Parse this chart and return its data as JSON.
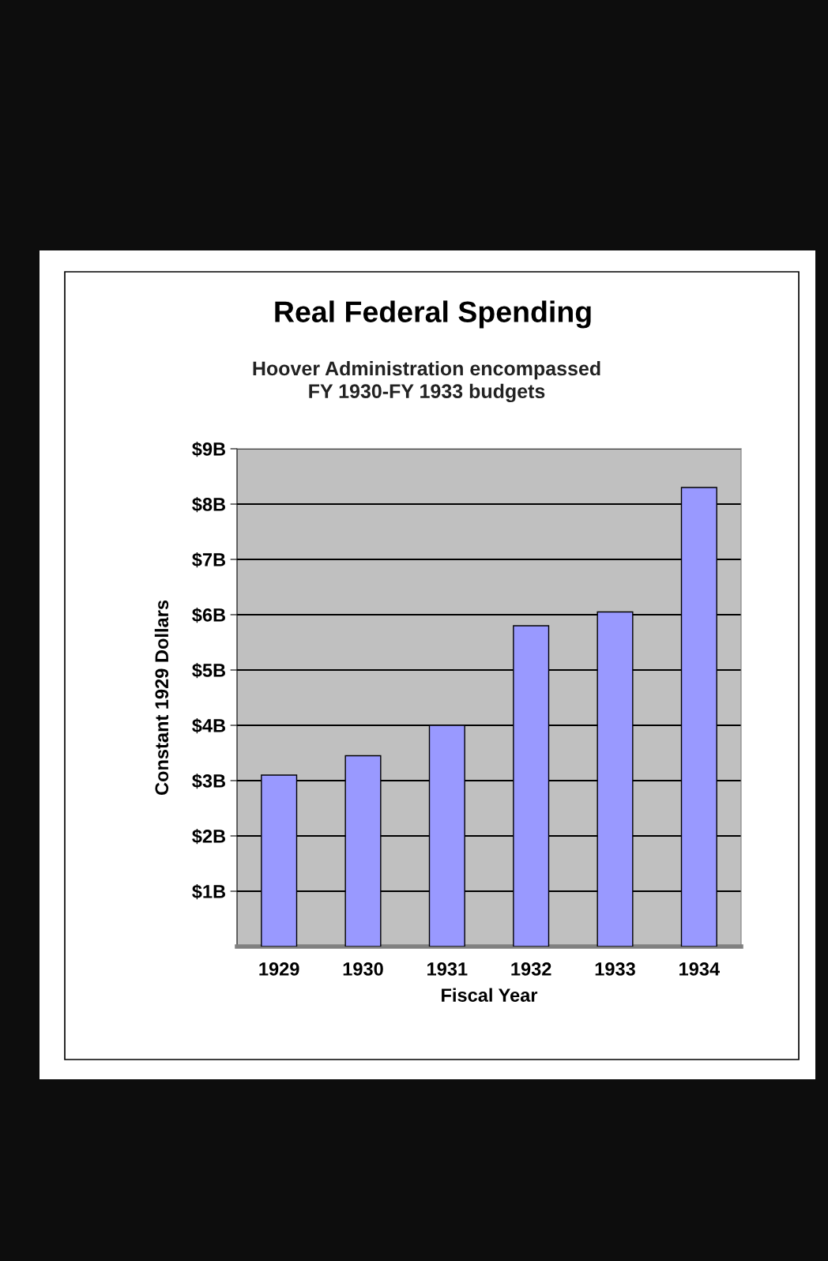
{
  "chart_data": {
    "type": "bar",
    "title": "Real Federal Spending",
    "subtitle": "Hoover Administration encompassed\nFY 1930-FY 1933 budgets",
    "xlabel": "Fiscal Year",
    "ylabel": "Constant 1929 Dollars",
    "categories": [
      "1929",
      "1930",
      "1931",
      "1932",
      "1933",
      "1934"
    ],
    "values": [
      3.1,
      3.45,
      4.0,
      5.8,
      6.05,
      8.3
    ],
    "color": "#9999ff",
    "ylim": [
      0,
      9
    ],
    "yticks": [
      {
        "value": 1,
        "label": "$1B"
      },
      {
        "value": 2,
        "label": "$2B"
      },
      {
        "value": 3,
        "label": "$3B"
      },
      {
        "value": 4,
        "label": "$4B"
      },
      {
        "value": 5,
        "label": "$5B"
      },
      {
        "value": 6,
        "label": "$6B"
      },
      {
        "value": 7,
        "label": "$7B"
      },
      {
        "value": 8,
        "label": "$8B"
      },
      {
        "value": 9,
        "label": "$9B"
      }
    ],
    "grid": "y"
  }
}
